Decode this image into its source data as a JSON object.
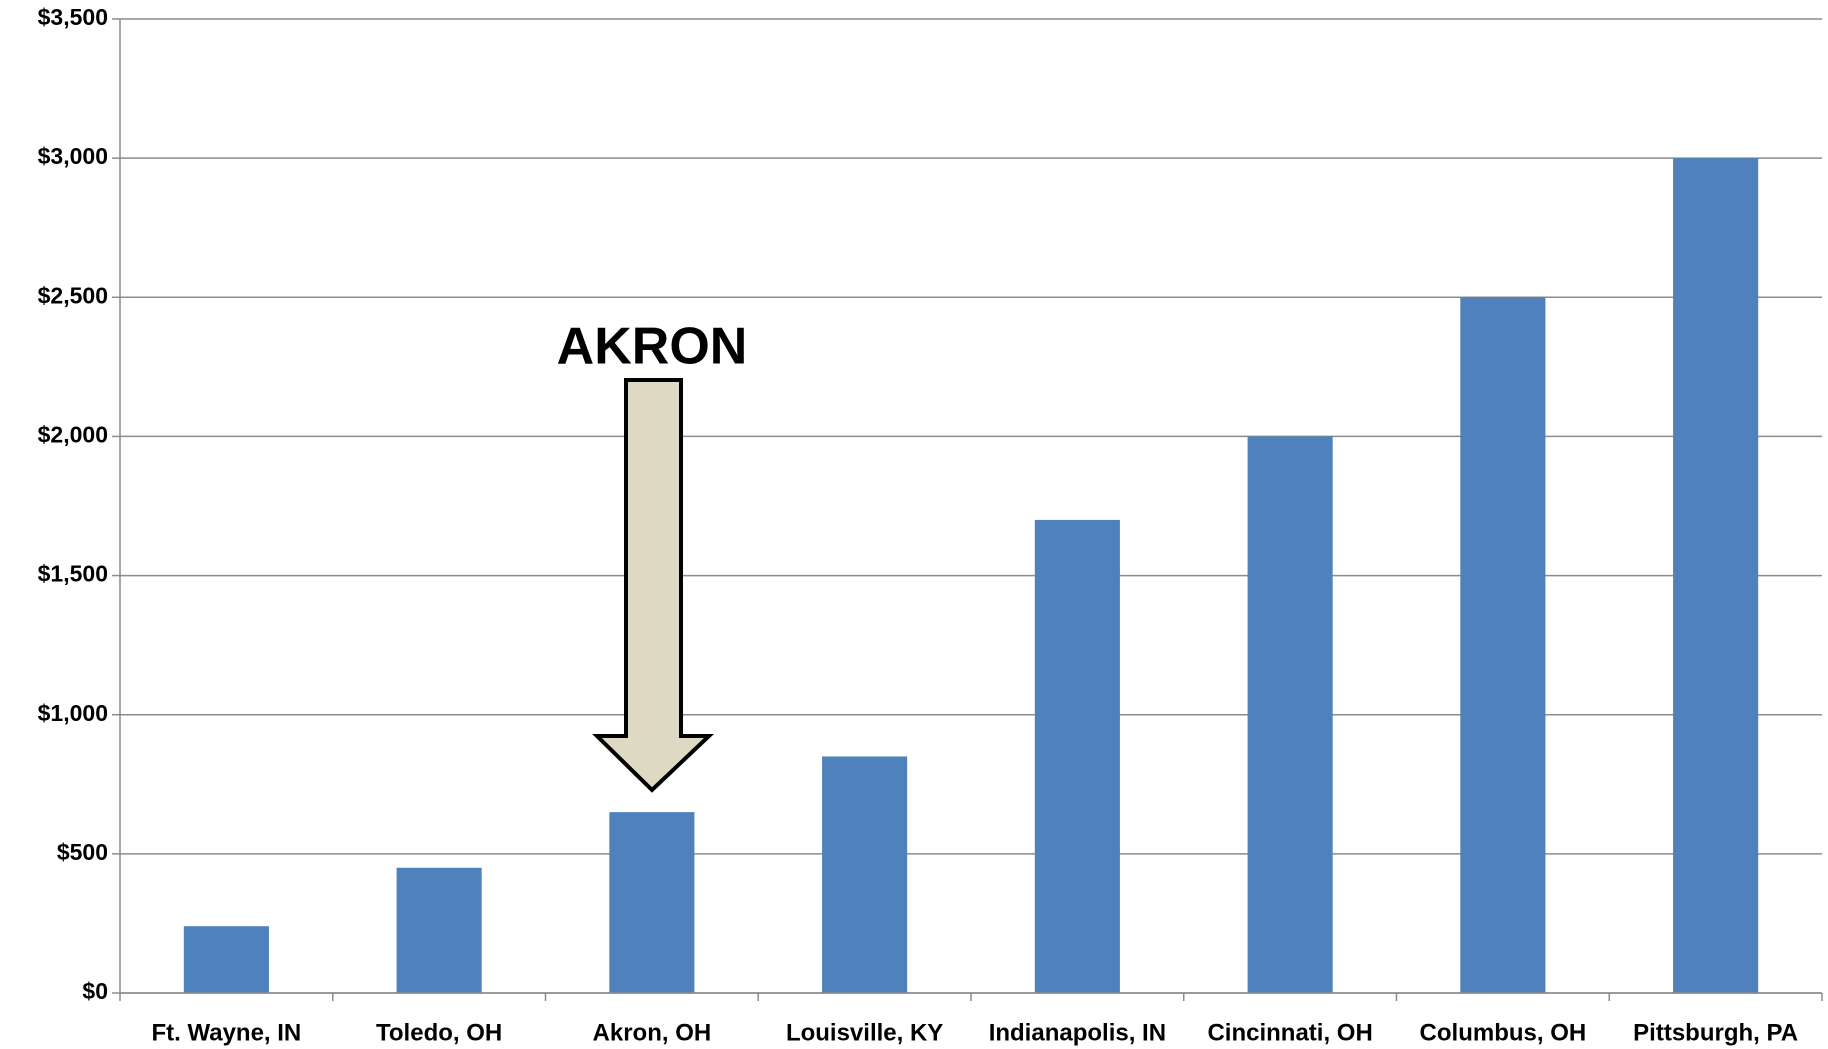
{
  "chart_data": {
    "type": "bar",
    "categories": [
      "Ft. Wayne, IN",
      "Toledo, OH",
      "Akron, OH",
      "Louisville, KY",
      "Indianapolis, IN",
      "Cincinnati, OH",
      "Columbus, OH",
      "Pittsburgh, PA"
    ],
    "values": [
      240,
      450,
      650,
      850,
      1700,
      2000,
      2500,
      3000
    ],
    "color": "#4f81bd",
    "ylim": [
      0,
      3500
    ],
    "yticks": [
      {
        "value": 0,
        "label": "$0"
      },
      {
        "value": 500,
        "label": "$500"
      },
      {
        "value": 1000,
        "label": "$1,000"
      },
      {
        "value": 1500,
        "label": "$1,500"
      },
      {
        "value": 2000,
        "label": "$2,000"
      },
      {
        "value": 2500,
        "label": "$2,500"
      },
      {
        "value": 3000,
        "label": "$3,000"
      },
      {
        "value": 3500,
        "label": "$3,500"
      }
    ],
    "grid": true,
    "annotation": "AKRON"
  }
}
